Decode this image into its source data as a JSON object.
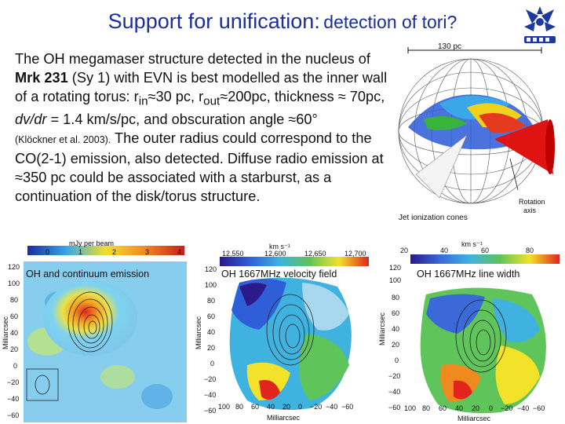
{
  "title": {
    "main": "Support for unification:",
    "sub": "detection of tori?"
  },
  "body": {
    "t1": "The OH megamaser structure detected in the nucleus of ",
    "mrk": "Mrk 231",
    "t2": " (Sy 1) with EVN is best modelled as the inner wall of a rotating torus: r",
    "sub_in": "in",
    "t3": "≈30 pc, r",
    "sub_out": "out",
    "t4": "≈200pc, thickness ≈ 70pc,",
    "dvdr": "dv/dr",
    "t5": " = 1.4 km/s/pc, and obscuration angle ≈60°",
    "cite": "(Klöckner et al.  2003).",
    "t6": " The outer radius could correspond to the CO(2-1) emission, also detected. Diffuse radio emission at ≈350 pc could be associated with a starburst, as a continuation of the disk/torus structure."
  },
  "torus_figure": {
    "scale": "130 pc",
    "cones": "Jet ionization cones",
    "rotation1": "Rotation",
    "rotation2": "axis"
  },
  "panel1": {
    "caption": "OH and continuum emission",
    "scale_label": "mJy per beam",
    "ticks": [
      "0",
      "1",
      "2",
      "3",
      "4"
    ],
    "yticks": [
      "120",
      "100",
      "80",
      "60",
      "40",
      "20",
      "0",
      "−20",
      "−40",
      "−60"
    ],
    "axis": "Milliarcsec"
  },
  "panel2": {
    "caption": "OH 1667MHz velocity field",
    "unit": "km s⁻¹",
    "ticks": [
      "12,550",
      "12,600",
      "12,650",
      "12,700"
    ],
    "yticks": [
      "120",
      "100",
      "80",
      "60",
      "40",
      "20",
      "0",
      "−20",
      "−40",
      "−60"
    ],
    "xticks": [
      "100",
      "80",
      "60",
      "40",
      "20",
      "0",
      "−20",
      "−40",
      "−60"
    ],
    "axis": "Milliarcsec"
  },
  "panel3": {
    "caption": "OH 1667MHz line width",
    "unit": "km s⁻¹",
    "ticks": [
      "20",
      "40",
      "60",
      "80"
    ],
    "yticks": [
      "120",
      "100",
      "80",
      "60",
      "40",
      "20",
      "0",
      "−20",
      "−40",
      "−60"
    ],
    "xticks": [
      "100",
      "80",
      "60",
      "40",
      "20",
      "0",
      "−20",
      "−40",
      "−60"
    ],
    "axis": "Milliarcsec"
  },
  "colors": {
    "title": "#1a2f9e",
    "logo": "#1e3a9e"
  }
}
